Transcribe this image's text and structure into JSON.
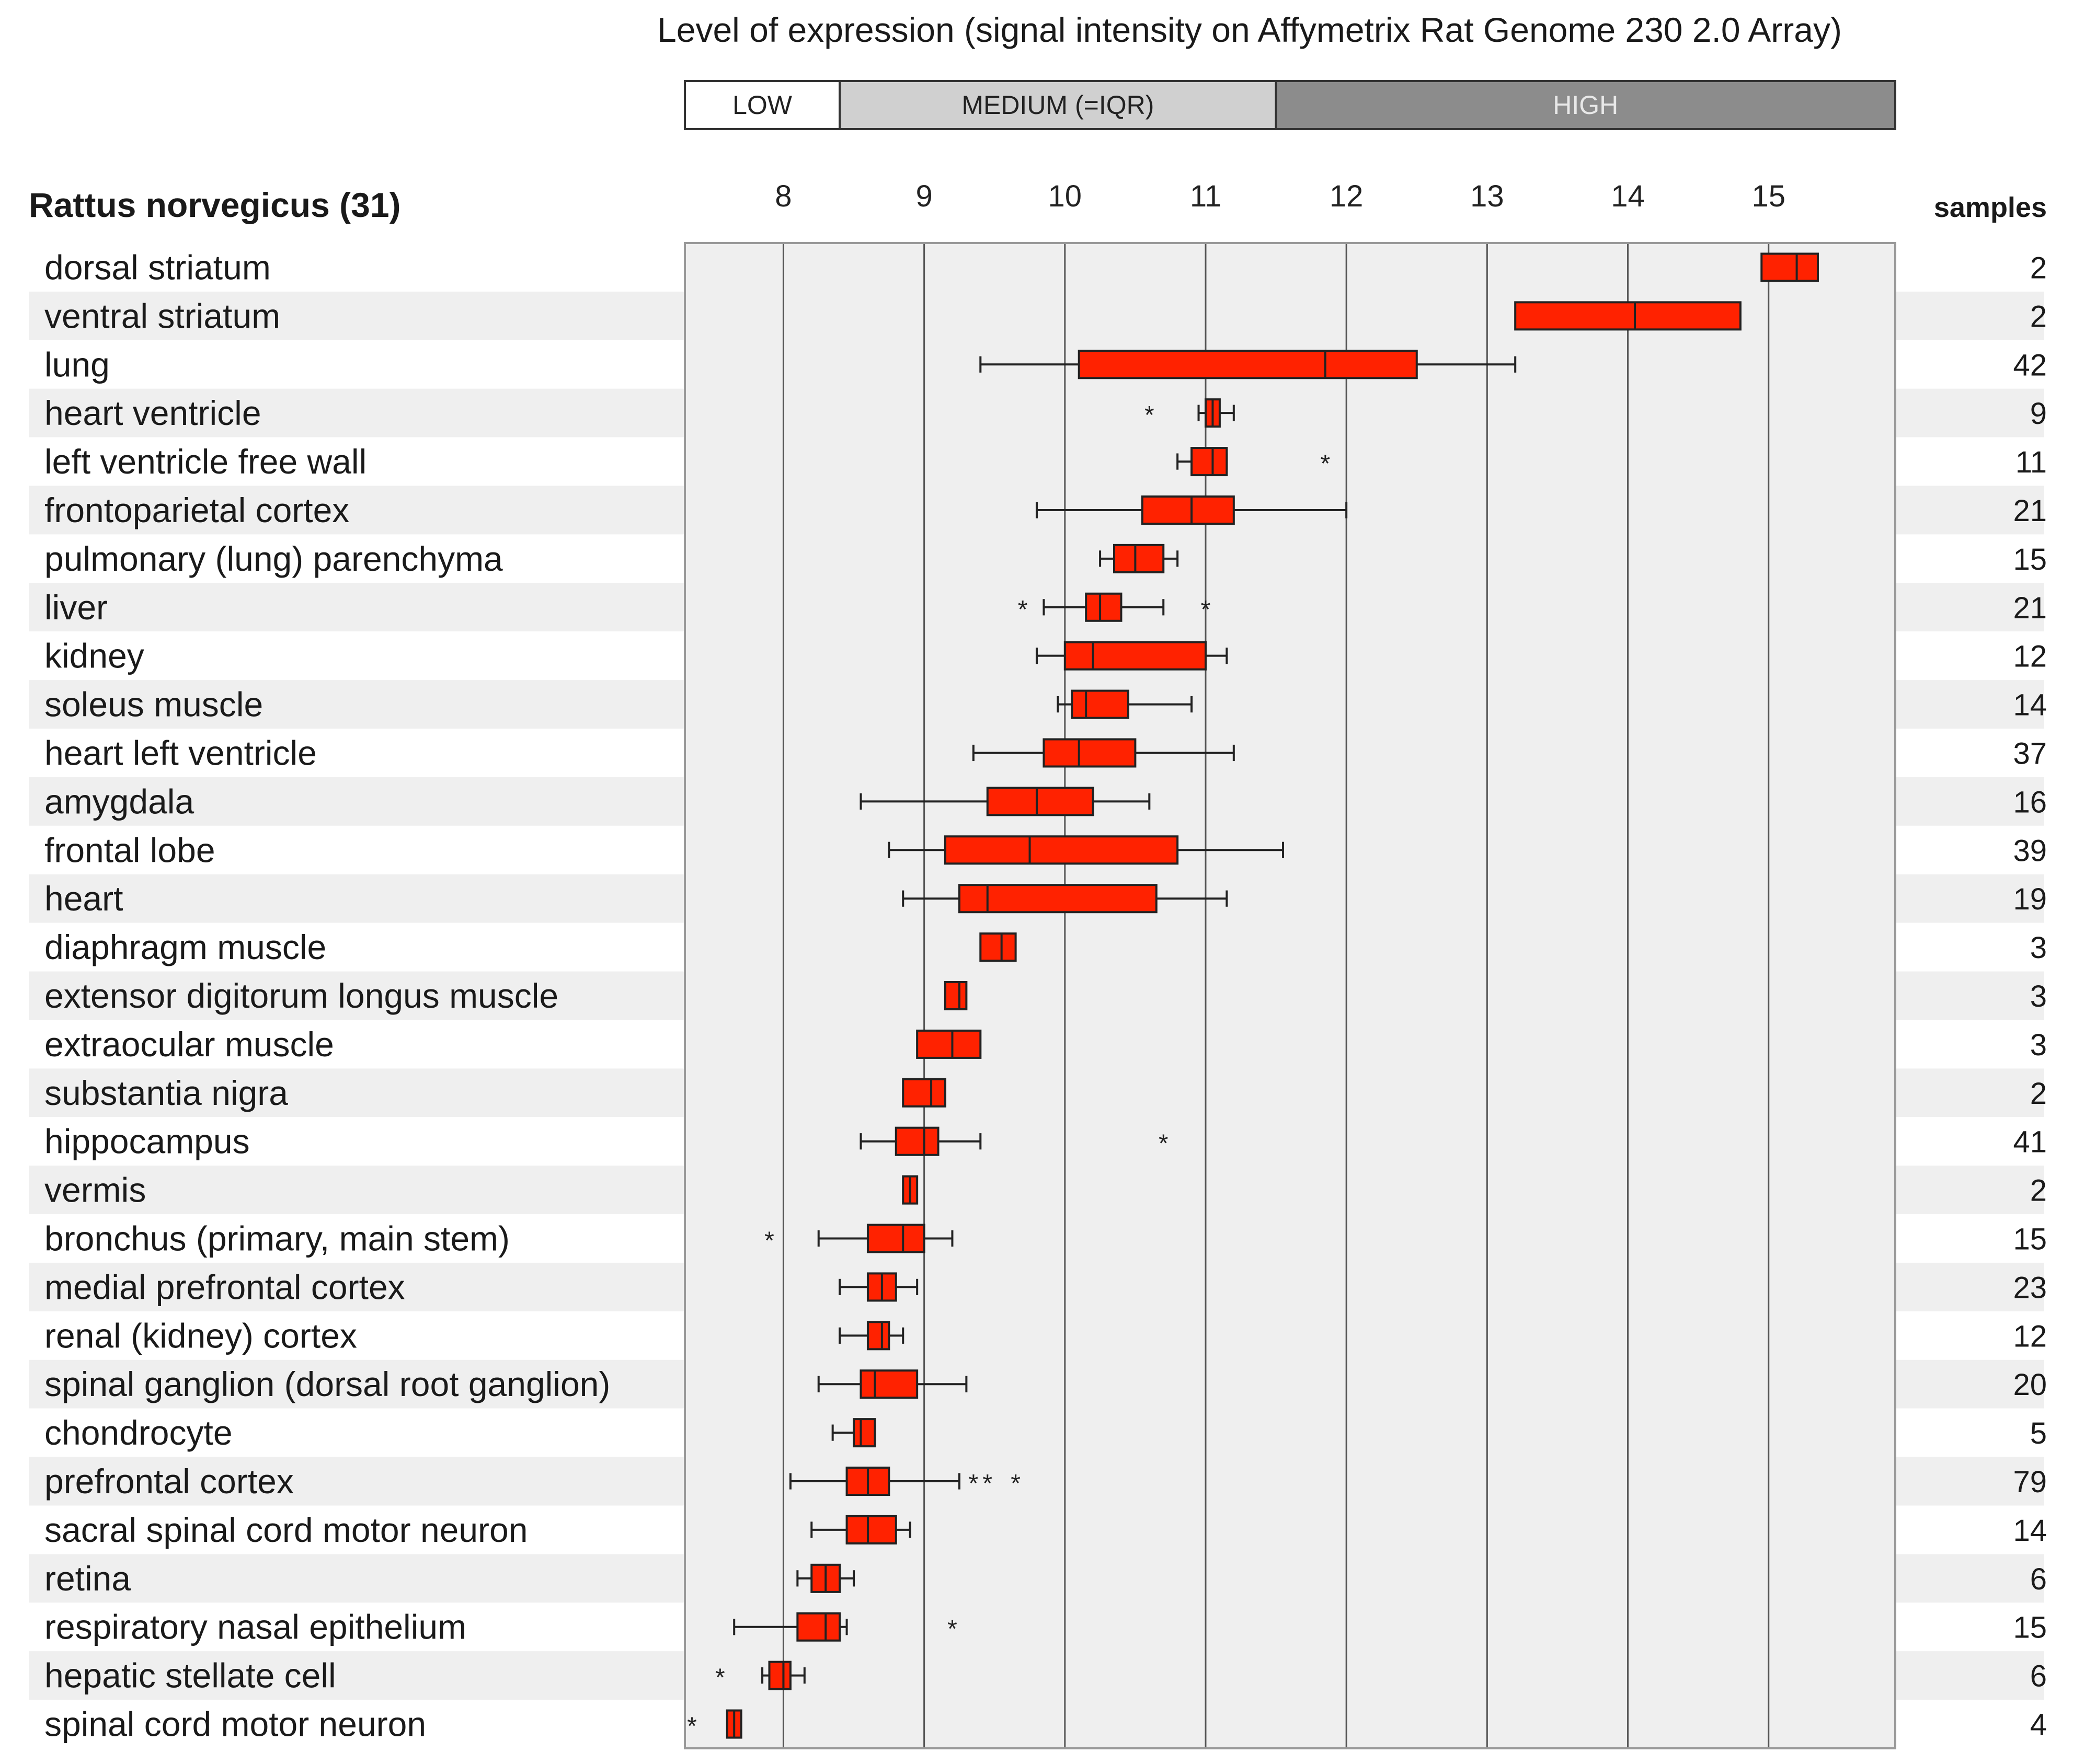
{
  "chart_data": {
    "type": "boxplot",
    "title": "Level of expression (signal intensity on Affymetrix Rat Genome 230 2.0 Array)",
    "legend": {
      "low": "LOW",
      "medium": "MEDIUM (=IQR)",
      "high": "HIGH",
      "medium_range": [
        8.4,
        11.5
      ],
      "low_color": "#ffffff",
      "medium_color": "#d0d0d0",
      "high_color": "#8c8c8c"
    },
    "species_label": "Rattus norvegicus (31)",
    "samples_header": "samples",
    "xlim": [
      7.3,
      15.9
    ],
    "ticks": [
      8,
      9,
      10,
      11,
      12,
      13,
      14,
      15
    ],
    "box_color": "#ff2200",
    "row_colors": [
      "#ffffff",
      "#efefef"
    ],
    "plot_bg": "#efefef",
    "rows": [
      {
        "label": "dorsal striatum",
        "samples": "2",
        "q1": 14.95,
        "median": 15.2,
        "q3": 15.35,
        "wmin": null,
        "wmax": null,
        "outliers": []
      },
      {
        "label": "ventral striatum",
        "samples": "2",
        "q1": 13.2,
        "median": 14.05,
        "q3": 14.8,
        "wmin": null,
        "wmax": null,
        "outliers": []
      },
      {
        "label": "lung",
        "samples": "42",
        "q1": 10.1,
        "median": 11.85,
        "q3": 12.5,
        "wmin": 9.4,
        "wmax": 13.2,
        "outliers": []
      },
      {
        "label": "heart ventricle",
        "samples": "9",
        "q1": 11.0,
        "median": 11.05,
        "q3": 11.1,
        "wmin": 10.95,
        "wmax": 11.2,
        "outliers": [
          10.6
        ]
      },
      {
        "label": "left ventricle free wall",
        "samples": "11",
        "q1": 10.9,
        "median": 11.05,
        "q3": 11.15,
        "wmin": 10.8,
        "wmax": 11.15,
        "outliers": [
          11.85
        ]
      },
      {
        "label": "frontoparietal cortex",
        "samples": "21",
        "q1": 10.55,
        "median": 10.9,
        "q3": 11.2,
        "wmin": 9.8,
        "wmax": 12.0,
        "outliers": []
      },
      {
        "label": "pulmonary (lung) parenchyma",
        "samples": "15",
        "q1": 10.35,
        "median": 10.5,
        "q3": 10.7,
        "wmin": 10.25,
        "wmax": 10.8,
        "outliers": []
      },
      {
        "label": "liver",
        "samples": "21",
        "q1": 10.15,
        "median": 10.25,
        "q3": 10.4,
        "wmin": 9.85,
        "wmax": 10.7,
        "outliers": [
          9.7,
          11.0
        ]
      },
      {
        "label": "kidney",
        "samples": "12",
        "q1": 10.0,
        "median": 10.2,
        "q3": 11.0,
        "wmin": 9.8,
        "wmax": 11.15,
        "outliers": []
      },
      {
        "label": "soleus muscle",
        "samples": "14",
        "q1": 10.05,
        "median": 10.15,
        "q3": 10.45,
        "wmin": 9.95,
        "wmax": 10.9,
        "outliers": []
      },
      {
        "label": "heart left ventricle",
        "samples": "37",
        "q1": 9.85,
        "median": 10.1,
        "q3": 10.5,
        "wmin": 9.35,
        "wmax": 11.2,
        "outliers": []
      },
      {
        "label": "amygdala",
        "samples": "16",
        "q1": 9.45,
        "median": 9.8,
        "q3": 10.2,
        "wmin": 8.55,
        "wmax": 10.6,
        "outliers": []
      },
      {
        "label": "frontal lobe",
        "samples": "39",
        "q1": 9.15,
        "median": 9.75,
        "q3": 10.8,
        "wmin": 8.75,
        "wmax": 11.55,
        "outliers": []
      },
      {
        "label": "heart",
        "samples": "19",
        "q1": 9.25,
        "median": 9.45,
        "q3": 10.65,
        "wmin": 8.85,
        "wmax": 11.15,
        "outliers": []
      },
      {
        "label": "diaphragm muscle",
        "samples": "3",
        "q1": 9.4,
        "median": 9.55,
        "q3": 9.65,
        "wmin": null,
        "wmax": null,
        "outliers": []
      },
      {
        "label": "extensor digitorum longus muscle",
        "samples": "3",
        "q1": 9.15,
        "median": 9.25,
        "q3": 9.3,
        "wmin": null,
        "wmax": null,
        "outliers": []
      },
      {
        "label": "extraocular muscle",
        "samples": "3",
        "q1": 8.95,
        "median": 9.2,
        "q3": 9.4,
        "wmin": null,
        "wmax": null,
        "outliers": []
      },
      {
        "label": "substantia nigra",
        "samples": "2",
        "q1": 8.85,
        "median": 9.05,
        "q3": 9.15,
        "wmin": null,
        "wmax": null,
        "outliers": []
      },
      {
        "label": "hippocampus",
        "samples": "41",
        "q1": 8.8,
        "median": 9.0,
        "q3": 9.1,
        "wmin": 8.55,
        "wmax": 9.4,
        "outliers": [
          10.7
        ]
      },
      {
        "label": "vermis",
        "samples": "2",
        "q1": 8.85,
        "median": 8.9,
        "q3": 8.95,
        "wmin": null,
        "wmax": null,
        "outliers": []
      },
      {
        "label": "bronchus (primary, main stem)",
        "samples": "15",
        "q1": 8.6,
        "median": 8.85,
        "q3": 9.0,
        "wmin": 8.25,
        "wmax": 9.2,
        "outliers": [
          7.9
        ]
      },
      {
        "label": "medial prefrontal cortex",
        "samples": "23",
        "q1": 8.6,
        "median": 8.7,
        "q3": 8.8,
        "wmin": 8.4,
        "wmax": 8.95,
        "outliers": []
      },
      {
        "label": "renal (kidney) cortex",
        "samples": "12",
        "q1": 8.6,
        "median": 8.7,
        "q3": 8.75,
        "wmin": 8.4,
        "wmax": 8.85,
        "outliers": []
      },
      {
        "label": "spinal ganglion (dorsal root ganglion)",
        "samples": "20",
        "q1": 8.55,
        "median": 8.65,
        "q3": 8.95,
        "wmin": 8.25,
        "wmax": 9.3,
        "outliers": []
      },
      {
        "label": "chondrocyte",
        "samples": "5",
        "q1": 8.5,
        "median": 8.55,
        "q3": 8.65,
        "wmin": 8.35,
        "wmax": 8.65,
        "outliers": []
      },
      {
        "label": "prefrontal cortex",
        "samples": "79",
        "q1": 8.45,
        "median": 8.6,
        "q3": 8.75,
        "wmin": 8.05,
        "wmax": 9.25,
        "outliers": [
          9.35,
          9.45,
          9.65
        ]
      },
      {
        "label": "sacral spinal cord motor neuron",
        "samples": "14",
        "q1": 8.45,
        "median": 8.6,
        "q3": 8.8,
        "wmin": 8.2,
        "wmax": 8.9,
        "outliers": []
      },
      {
        "label": "retina",
        "samples": "6",
        "q1": 8.2,
        "median": 8.3,
        "q3": 8.4,
        "wmin": 8.1,
        "wmax": 8.5,
        "outliers": []
      },
      {
        "label": "respiratory nasal epithelium",
        "samples": "15",
        "q1": 8.1,
        "median": 8.3,
        "q3": 8.4,
        "wmin": 7.65,
        "wmax": 8.45,
        "outliers": [
          9.2
        ]
      },
      {
        "label": "hepatic stellate cell",
        "samples": "6",
        "q1": 7.9,
        "median": 8.0,
        "q3": 8.05,
        "wmin": 7.85,
        "wmax": 8.15,
        "outliers": [
          7.55
        ]
      },
      {
        "label": "spinal cord motor neuron",
        "samples": "4",
        "q1": 7.6,
        "median": 7.65,
        "q3": 7.7,
        "wmin": null,
        "wmax": null,
        "outliers": [
          7.35
        ]
      }
    ]
  }
}
